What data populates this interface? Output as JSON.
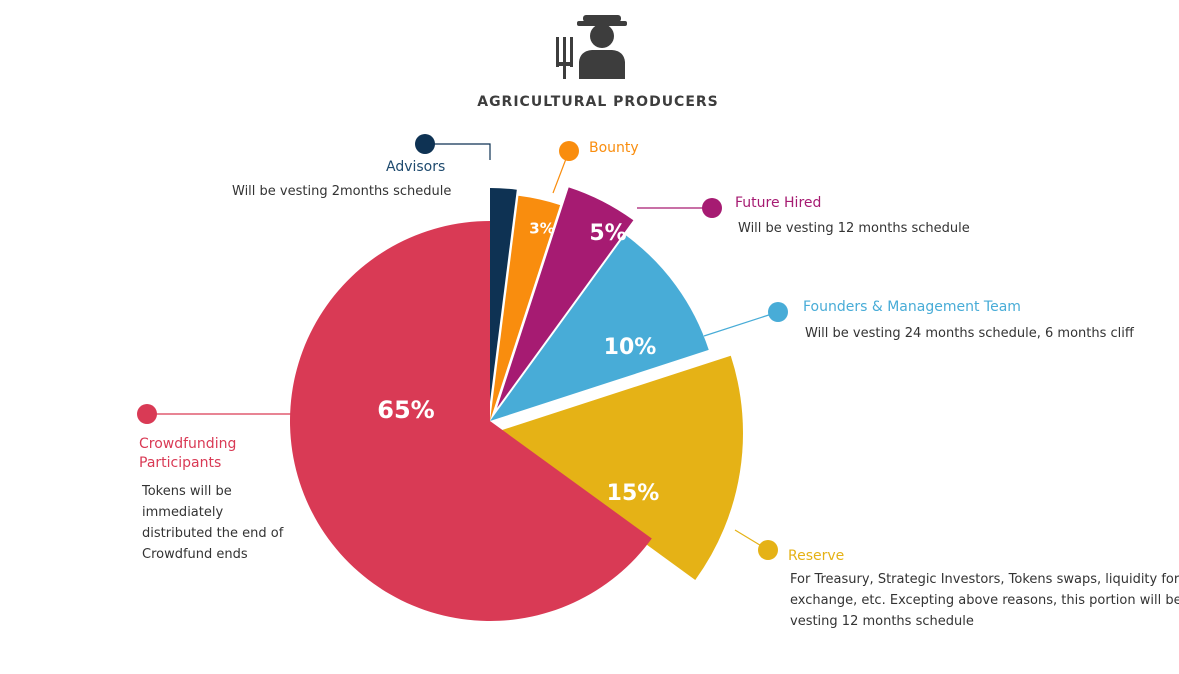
{
  "chart_data": {
    "type": "pie",
    "title": "AGRICULTURAL PRODUCERS",
    "icon": "farmer-with-pitchfork-icon",
    "slices": [
      {
        "key": "advisors",
        "name": "Advisors",
        "value": 2,
        "label": "2%",
        "color": "#0e3253",
        "description": [
          "Will be vesting 2months schedule"
        ]
      },
      {
        "key": "bounty",
        "name": "Bounty",
        "value": 3,
        "label": "3%",
        "color": "#f98d0e",
        "description": []
      },
      {
        "key": "future",
        "name": "Future Hired",
        "value": 5,
        "label": "5%",
        "color": "#a61b72",
        "description": [
          "Will be vesting 12 months schedule"
        ]
      },
      {
        "key": "founders",
        "name": "Founders & Management Team",
        "value": 10,
        "label": "10%",
        "color": "#48acd7",
        "description": [
          "Will be vesting 24 months schedule, 6 months cliff"
        ]
      },
      {
        "key": "reserve",
        "name": "Reserve",
        "value": 15,
        "label": "15%",
        "color": "#e5b216",
        "description": [
          "For Treasury, Strategic Investors, Tokens swaps, liquidity for",
          "exchange, etc. Excepting above reasons, this portion will be",
          "vesting 12 months schedule"
        ]
      },
      {
        "key": "crowd",
        "name": "Crowdfunding Participants",
        "name_lines": [
          "Crowdfunding",
          "Participants"
        ],
        "value": 65,
        "label": "65%",
        "color": "#d93a55",
        "description": [
          "Tokens will be",
          "immediately",
          "distributed the end of",
          "Crowdfund ends"
        ]
      }
    ],
    "exploded": [
      "advisors",
      "future",
      "reserve"
    ],
    "legend_placement": "callouts around pie"
  }
}
